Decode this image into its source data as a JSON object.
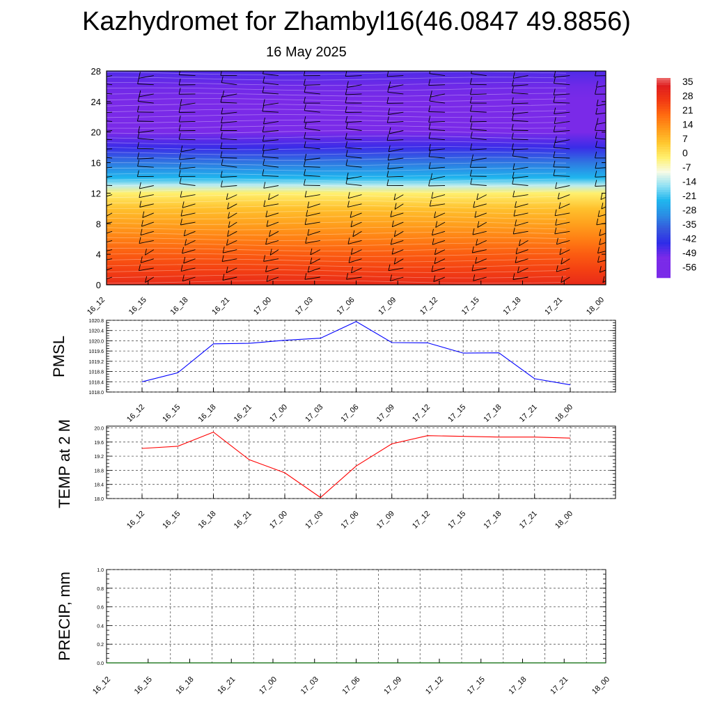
{
  "header": {
    "title": "Kazhydromet for Zhambyl16(46.0847 49.8856)",
    "date": "16 May 2025"
  },
  "chart_data": [
    {
      "type": "heatmap",
      "name": "temperature-profile",
      "title": "",
      "xlabel": "",
      "ylabel": "",
      "x_tick_labels": [
        "16_12",
        "16_15",
        "16_18",
        "16_21",
        "17_00",
        "17_03",
        "17_06",
        "17_09",
        "17_12",
        "17_15",
        "17_18",
        "17_21",
        "18_00"
      ],
      "y_ticks": [
        0,
        4,
        8,
        12,
        16,
        20,
        24,
        28
      ],
      "ylim": [
        0,
        28
      ],
      "colorbar": {
        "tick_labels": [
          "35",
          "28",
          "21",
          "14",
          "7",
          "0",
          "-7",
          "-14",
          "-21",
          "-28",
          "-35",
          "-42",
          "-49",
          "-56"
        ],
        "colors": [
          "#f4a6a6",
          "#e01e1e",
          "#f23a12",
          "#ff6a10",
          "#ff9a1a",
          "#ffc830",
          "#fff06e",
          "#f7fbe6",
          "#8fe0f4",
          "#1fb6ee",
          "#2a8ee4",
          "#3558dc",
          "#2f2ce8",
          "#7a2ae8"
        ]
      },
      "rows": [
        {
          "y": 0,
          "temp": 25
        },
        {
          "y": 2,
          "temp": 20
        },
        {
          "y": 4,
          "temp": 16
        },
        {
          "y": 6,
          "temp": 11
        },
        {
          "y": 8,
          "temp": 6
        },
        {
          "y": 10,
          "temp": 1
        },
        {
          "y": 12,
          "temp": -7
        },
        {
          "y": 13,
          "temp": -18
        },
        {
          "y": 14,
          "temp": -28
        },
        {
          "y": 16,
          "temp": -38
        },
        {
          "y": 18,
          "temp": -50
        },
        {
          "y": 20,
          "temp": -56
        },
        {
          "y": 22,
          "temp": -60
        },
        {
          "y": 24,
          "temp": -57
        },
        {
          "y": 26,
          "temp": -55
        },
        {
          "y": 28,
          "temp": -52
        }
      ],
      "wind_barbs_shown": true,
      "grid": false
    },
    {
      "type": "line",
      "name": "pmsl",
      "ylabel": "PMSL",
      "x": [
        "16_12",
        "16_15",
        "16_18",
        "16_21",
        "17_00",
        "17_03",
        "17_06",
        "17_09",
        "17_12",
        "17_15",
        "17_18",
        "17_21",
        "18_00"
      ],
      "y_ticks": [
        "1018.0",
        "1018.4",
        "1018.8",
        "1019.2",
        "1019.6",
        "1020.0",
        "1020.4",
        "1020.8"
      ],
      "ylim": [
        1018.0,
        1020.8
      ],
      "series": [
        {
          "color": "#0000ff",
          "values": [
            1018.4,
            1018.75,
            1019.88,
            1019.9,
            1020.02,
            1020.1,
            1020.75,
            1019.93,
            1019.92,
            1019.52,
            1019.53,
            1018.52,
            1018.28
          ]
        }
      ],
      "grid": true
    },
    {
      "type": "line",
      "name": "temperature-2m",
      "ylabel": "TEMP at 2 M",
      "x": [
        "16_12",
        "16_15",
        "16_18",
        "16_21",
        "17_00",
        "17_03",
        "17_06",
        "17_09",
        "17_12",
        "17_15",
        "17_18",
        "17_21",
        "18_00"
      ],
      "y_ticks": [
        "18.0",
        "18.4",
        "18.8",
        "19.2",
        "19.6",
        "20.0"
      ],
      "ylim": [
        18.0,
        20.05
      ],
      "series": [
        {
          "color": "#ff0000",
          "values": [
            19.42,
            19.48,
            19.88,
            19.1,
            18.73,
            18.03,
            18.92,
            19.55,
            19.78,
            19.76,
            19.74,
            19.74,
            19.71
          ]
        }
      ],
      "grid": true
    },
    {
      "type": "line",
      "name": "precipitation",
      "ylabel": "PRECIP, mm",
      "x": [
        "16_12",
        "16_15",
        "16_18",
        "16_21",
        "17_00",
        "17_03",
        "17_06",
        "17_09",
        "17_12",
        "17_15",
        "17_18",
        "17_21",
        "18_00"
      ],
      "y_ticks": [
        "0.0",
        "0.2",
        "0.4",
        "0.6",
        "0.8",
        "1.0"
      ],
      "ylim": [
        0.0,
        1.0
      ],
      "series": [
        {
          "color": "#006400",
          "values": [
            0,
            0,
            0,
            0,
            0,
            0,
            0,
            0,
            0,
            0,
            0,
            0,
            0
          ]
        }
      ],
      "grid": true
    }
  ]
}
